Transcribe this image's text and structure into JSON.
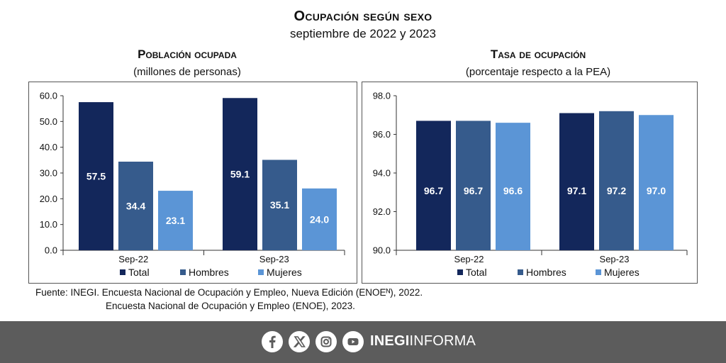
{
  "header": {
    "title": "Ocupación según sexo",
    "subtitle": "septiembre de 2022 y 2023"
  },
  "chart_data": [
    {
      "type": "bar",
      "title": "Población ocupada",
      "subtitle": "(millones de personas)",
      "categories": [
        "Sep-22",
        "Sep-23"
      ],
      "series": [
        {
          "name": "Total",
          "values": [
            57.5,
            59.1
          ],
          "color": "#13275b"
        },
        {
          "name": "Hombres",
          "values": [
            34.4,
            35.1
          ],
          "color": "#365b8c"
        },
        {
          "name": "Mujeres",
          "values": [
            23.1,
            24.0
          ],
          "color": "#5b95d6"
        }
      ],
      "ylim": [
        0,
        60
      ],
      "yticks": [
        "0.0",
        "10.0",
        "20.0",
        "30.0",
        "40.0",
        "50.0",
        "60.0"
      ],
      "legend": "bottom",
      "grid": false
    },
    {
      "type": "bar",
      "title": "Tasa de ocupación",
      "subtitle": "(porcentaje respecto a la PEA)",
      "categories": [
        "Sep-22",
        "Sep-23"
      ],
      "series": [
        {
          "name": "Total",
          "values": [
            96.7,
            97.1
          ],
          "color": "#13275b"
        },
        {
          "name": "Hombres",
          "values": [
            96.7,
            97.2
          ],
          "color": "#365b8c"
        },
        {
          "name": "Mujeres",
          "values": [
            96.6,
            97.0
          ],
          "color": "#5b95d6"
        }
      ],
      "ylim": [
        90,
        98
      ],
      "yticks": [
        "90.0",
        "92.0",
        "94.0",
        "96.0",
        "98.0"
      ],
      "legend": "bottom",
      "grid": false
    }
  ],
  "source": {
    "line1": "Fuente: INEGI. Encuesta Nacional de Ocupación y Empleo, Nueva Edición (ENOEᴺ), 2022.",
    "line2": "Encuesta Nacional de Ocupación y Empleo (ENOE), 2023."
  },
  "footer": {
    "brand_bold": "INEGI",
    "brand_light": "INFORMA",
    "icons": [
      "facebook-icon",
      "x-icon",
      "instagram-icon",
      "youtube-icon"
    ]
  }
}
